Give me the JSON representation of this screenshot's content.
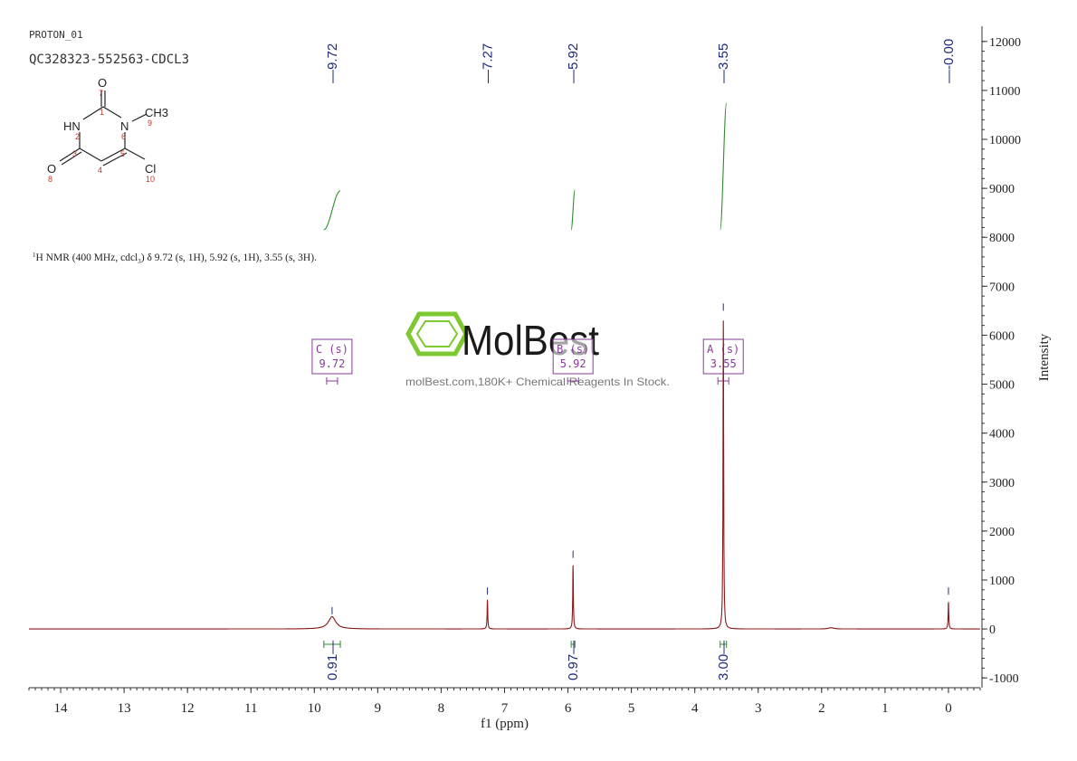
{
  "header": {
    "experiment": "PROTON_01",
    "sample_id": "QC328323-552563-CDCL3"
  },
  "structure": {
    "atoms": [
      {
        "label": "O",
        "num": "7"
      },
      {
        "label": "HN",
        "num": "2"
      },
      {
        "label": "N",
        "num": "6"
      },
      {
        "label": "CH3",
        "num": "9"
      },
      {
        "label": "O",
        "num": "8"
      },
      {
        "label": "Cl",
        "num": "10"
      },
      {
        "label": "",
        "num": "1"
      },
      {
        "label": "",
        "num": "3"
      },
      {
        "label": "",
        "num": "4"
      },
      {
        "label": "",
        "num": "5"
      }
    ]
  },
  "nmr_summary": {
    "prefix": "1",
    "text": "H NMR (400 MHz, cdcl",
    "subscript": "3",
    "suffix": ") δ 9.72 (s, 1H), 5.92 (s, 1H), 3.55 (s, 3H)."
  },
  "watermark": {
    "brand": "MolBest",
    "tagline": "molBest.com,180K+ Chemical Reagents In Stock."
  },
  "colors": {
    "spectrum": "#8b1a1a",
    "peak_labels": "#1f2a7a",
    "integrals": "#2e8b2e",
    "multiplets": "#8a3a9a",
    "watermark": "#7ec832",
    "axis": "#333333"
  },
  "chart_data": {
    "type": "line",
    "xlabel": "f1 (ppm)",
    "ylabel": "Intensity",
    "xlim": [
      14.5,
      -0.5
    ],
    "ylim": [
      -1200,
      12200
    ],
    "x_ticks": [
      14,
      13,
      12,
      11,
      10,
      9,
      8,
      7,
      6,
      5,
      4,
      3,
      2,
      1,
      0
    ],
    "y_ticks": [
      -1000,
      0,
      1000,
      2000,
      3000,
      4000,
      5000,
      6000,
      7000,
      8000,
      9000,
      10000,
      11000,
      12000
    ],
    "series": [
      {
        "peaks": [
          {
            "ppm": 9.72,
            "height": 250,
            "width": 0.07
          },
          {
            "ppm": 7.27,
            "height": 600,
            "width": 0.006
          },
          {
            "ppm": 5.92,
            "height": 1300,
            "width": 0.006
          },
          {
            "ppm": 3.55,
            "height": 6300,
            "width": 0.006
          },
          {
            "ppm": 1.85,
            "height": 25,
            "width": 0.05
          },
          {
            "ppm": 0.0,
            "height": 550,
            "width": 0.006
          }
        ]
      }
    ],
    "peak_labels": [
      "9.72",
      "7.27",
      "5.92",
      "3.55",
      "-0.00"
    ],
    "peak_label_positions": [
      9.72,
      7.27,
      5.92,
      3.55,
      0.0
    ],
    "peak_top_markers": [
      {
        "ppm": 9.72,
        "intensity": 300
      },
      {
        "ppm": 7.27,
        "intensity": 700
      },
      {
        "ppm": 5.92,
        "intensity": 1450
      },
      {
        "ppm": 3.55,
        "intensity": 6500
      },
      {
        "ppm": 0.0,
        "intensity": 700
      }
    ],
    "integrals": [
      {
        "from": 9.85,
        "to": 9.59,
        "label": "0.91",
        "curve_start": 8150,
        "curve_end": 8950
      },
      {
        "from": 5.95,
        "to": 5.89,
        "label": "0.97",
        "curve_start": 8150,
        "curve_end": 8970
      },
      {
        "from": 3.6,
        "to": 3.5,
        "label": "3.00",
        "curve_start": 8150,
        "curve_end": 10750
      }
    ],
    "multiplets": [
      {
        "letter": "C",
        "type": "(s)",
        "shift": "9.72",
        "ppm": 9.72
      },
      {
        "letter": "B",
        "type": "(s)",
        "shift": "5.92",
        "ppm": 5.92
      },
      {
        "letter": "A",
        "type": "(s)",
        "shift": "3.55",
        "ppm": 3.55
      }
    ]
  }
}
